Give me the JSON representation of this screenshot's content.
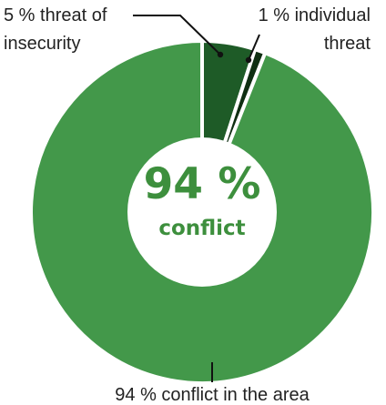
{
  "chart_data": {
    "type": "pie",
    "style": "donut",
    "slices": [
      {
        "label": "conflict in the area",
        "value": 94,
        "color": "#43984a"
      },
      {
        "label": "threat of insecurity",
        "value": 5,
        "color": "#1e5b27"
      },
      {
        "label": "individual threat",
        "value": 1,
        "color": "#0f2f12"
      }
    ],
    "annotations": {
      "threat_insecurity_line1": "5 % threat of",
      "threat_insecurity_line2": "insecurity",
      "individual_line1": "1 % individual",
      "individual_line2": "threat",
      "conflict": "94 % conflict in the area"
    },
    "center": {
      "value": "94 %",
      "label": "conflict"
    }
  }
}
